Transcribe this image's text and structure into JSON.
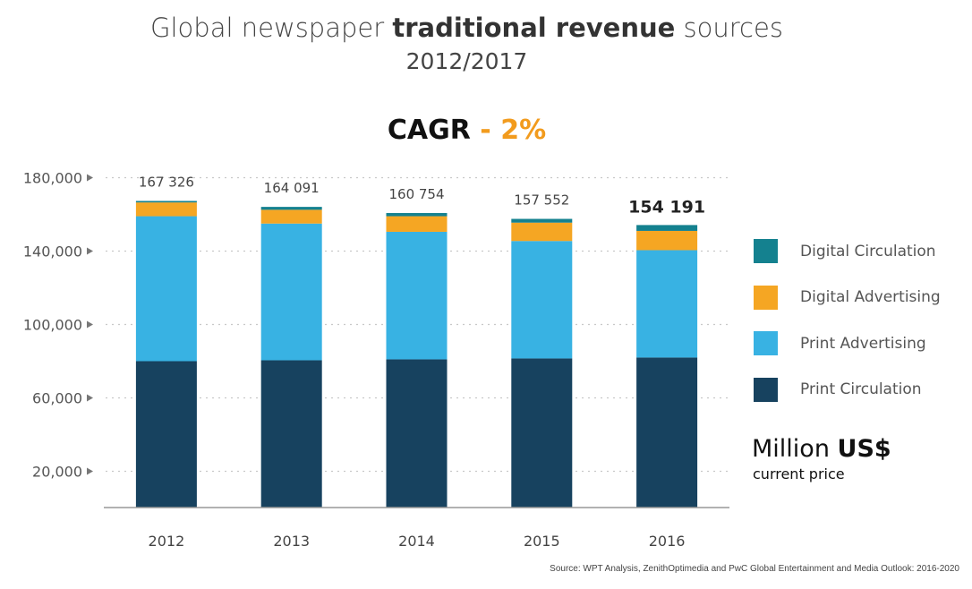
{
  "header": {
    "title_pre": "Global newspaper ",
    "title_bold": "traditional revenue",
    "title_post": " sources",
    "subtitle": "2012/2017"
  },
  "cagr": {
    "label": "CAGR",
    "value": "- 2%"
  },
  "unit": {
    "main": "Million ",
    "bold": "US$",
    "sub": "current price"
  },
  "source": "Source: WPT Analysis, ZenithOptimedia and PwC Global Entertainment and Media Outlook: 2016-2020",
  "colors": {
    "digital_circulation": "#14818f",
    "digital_advertising": "#f5a623",
    "print_advertising": "#38b2e3",
    "print_circulation": "#17425f"
  },
  "chart_data": {
    "type": "bar",
    "stacked": true,
    "categories": [
      "2012",
      "2013",
      "2014",
      "2015",
      "2016"
    ],
    "series": [
      {
        "name": "Print Circulation",
        "key": "print_circulation",
        "values": [
          80000,
          80500,
          81000,
          81500,
          82000
        ]
      },
      {
        "name": "Print Advertising",
        "key": "print_advertising",
        "values": [
          79000,
          74500,
          69500,
          64000,
          58500
        ]
      },
      {
        "name": "Digital Advertising",
        "key": "digital_advertising",
        "values": [
          7500,
          7500,
          8500,
          10000,
          10500
        ]
      },
      {
        "name": "Digital Circulation",
        "key": "digital_circulation",
        "values": [
          826,
          1591,
          1754,
          2052,
          3191
        ]
      }
    ],
    "totals": [
      "167 326",
      "164 091",
      "160 754",
      "157 552",
      "154 191"
    ],
    "highlight_total_index": 4,
    "yticks": [
      20000,
      60000,
      100000,
      140000,
      180000
    ],
    "ytick_labels": [
      "20,000",
      "60,000",
      "100,000",
      "140,000",
      "180,000"
    ],
    "ylim": [
      0,
      180000
    ],
    "legend": [
      "Digital Circulation",
      "Digital Advertising",
      "Print Advertising",
      "Print Circulation"
    ],
    "legend_position": "right"
  }
}
